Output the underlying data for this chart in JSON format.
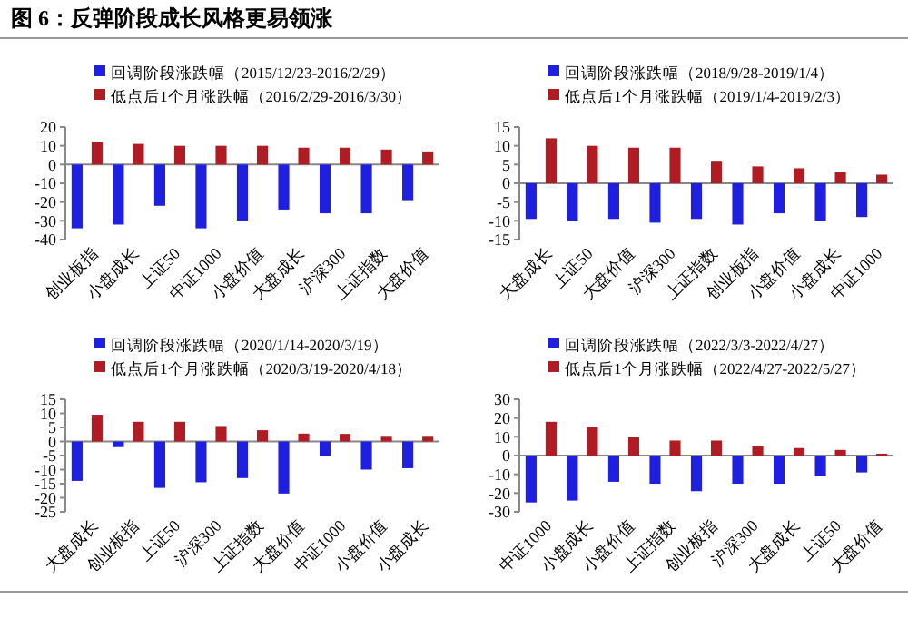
{
  "chart_data": [
    {
      "type": "bar",
      "title": "图 6：反弹阶段成长风格更易领涨",
      "categories": [
        "创业板指",
        "小盘成长",
        "上证50",
        "中证1000",
        "小盘价值",
        "大盘成长",
        "沪深300",
        "上证指数",
        "大盘价值"
      ],
      "ylim": [
        -40,
        20
      ],
      "yticks": [
        -40,
        -30,
        -20,
        -10,
        0,
        10,
        20
      ],
      "legend": "top",
      "series": [
        {
          "name": "回调阶段涨跌幅（2015/12/23-2016/2/29）",
          "color": "#1f1fe0",
          "values": [
            -34,
            -32,
            -22,
            -34,
            -30,
            -24,
            -26,
            -26,
            -19
          ]
        },
        {
          "name": "低点后1个月涨跌幅（2016/2/29-2016/3/30）",
          "color": "#b01c24",
          "values": [
            12,
            11,
            10,
            10,
            10,
            9,
            9,
            8,
            7
          ]
        }
      ]
    },
    {
      "type": "bar",
      "categories": [
        "大盘成长",
        "上证50",
        "大盘价值",
        "沪深300",
        "上证指数",
        "创业板指",
        "小盘价值",
        "小盘成长",
        "中证1000"
      ],
      "ylim": [
        -15,
        15
      ],
      "yticks": [
        -15,
        -10,
        -5,
        0,
        5,
        10,
        15
      ],
      "legend": "top",
      "series": [
        {
          "name": "回调阶段涨跌幅（2018/9/28-2019/1/4）",
          "color": "#1f1fe0",
          "values": [
            -9.5,
            -10,
            -9.5,
            -10.5,
            -9.5,
            -11,
            -8,
            -10,
            -9
          ]
        },
        {
          "name": "低点后1个月涨跌幅（2019/1/4-2019/2/3）",
          "color": "#b01c24",
          "values": [
            12,
            10,
            9.5,
            9.5,
            6,
            4.5,
            4,
            3,
            2.3
          ]
        }
      ]
    },
    {
      "type": "bar",
      "categories": [
        "大盘成长",
        "创业板指",
        "上证50",
        "沪深300",
        "上证指数",
        "大盘价值",
        "中证1000",
        "小盘价值",
        "小盘成长"
      ],
      "ylim": [
        -25,
        15
      ],
      "yticks": [
        -25,
        -20,
        -15,
        -10,
        -5,
        0,
        5,
        10,
        15
      ],
      "legend": "top",
      "series": [
        {
          "name": "回调阶段涨跌幅（2020/1/14-2020/3/19）",
          "color": "#1f1fe0",
          "values": [
            -14,
            -2,
            -16.5,
            -14.5,
            -13,
            -18.5,
            -5,
            -10,
            -9.5
          ]
        },
        {
          "name": "低点后1个月涨跌幅（2020/3/19-2020/4/18）",
          "color": "#b01c24",
          "values": [
            9.5,
            7,
            7,
            5.5,
            4,
            2.8,
            2.7,
            2,
            2
          ]
        }
      ]
    },
    {
      "type": "bar",
      "categories": [
        "中证1000",
        "小盘成长",
        "小盘价值",
        "上证指数",
        "创业板指",
        "沪深300",
        "大盘成长",
        "上证50",
        "大盘价值"
      ],
      "ylim": [
        -30,
        30
      ],
      "yticks": [
        -30,
        -20,
        -10,
        0,
        10,
        20,
        30
      ],
      "legend": "top",
      "series": [
        {
          "name": "回调阶段涨跌幅（2022/3/3-2022/4/27）",
          "color": "#1f1fe0",
          "values": [
            -25,
            -24,
            -14,
            -15,
            -19,
            -15,
            -15,
            -11,
            -9
          ]
        },
        {
          "name": "低点后1个月涨跌幅（2022/4/27-2022/5/27）",
          "color": "#b01c24",
          "values": [
            18,
            15,
            10,
            8,
            8,
            5,
            4,
            3,
            1
          ]
        }
      ]
    }
  ]
}
